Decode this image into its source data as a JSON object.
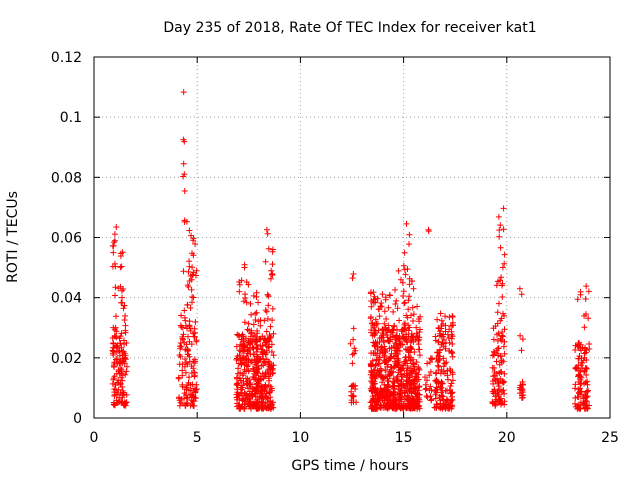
{
  "chart_data": {
    "type": "scatter",
    "title": "Day 235 of 2018, Rate Of TEC Index for receiver kat1",
    "xlabel": "GPS time / hours",
    "ylabel": "ROTI / TECUs",
    "xlim": [
      0,
      25
    ],
    "ylim": [
      0,
      0.12
    ],
    "x_ticks": [
      "0",
      "5",
      "10",
      "15",
      "20",
      "25"
    ],
    "y_ticks": [
      "0",
      "0.02",
      "0.04",
      "0.06",
      "0.08",
      "0.1",
      "0.12"
    ],
    "grid": true,
    "marker": "plus",
    "marker_color": "#ff0000",
    "series": [
      {
        "name": "ROTI",
        "clusters": [
          {
            "x": [
              0.9,
              1.6
            ],
            "y": [
              0.004,
              0.025
            ],
            "n": 110
          },
          {
            "x": [
              0.9,
              1.6
            ],
            "y": [
              0.025,
              0.045
            ],
            "n": 30
          },
          {
            "x": [
              0.9,
              1.1
            ],
            "y": [
              0.05,
              0.066
            ],
            "n": 10
          },
          {
            "x": [
              1.2,
              1.5
            ],
            "y": [
              0.045,
              0.056
            ],
            "n": 5
          },
          {
            "x": [
              4.1,
              5.0
            ],
            "y": [
              0.004,
              0.03
            ],
            "n": 110
          },
          {
            "x": [
              4.2,
              5.0
            ],
            "y": [
              0.03,
              0.05
            ],
            "n": 30
          },
          {
            "x": [
              4.6,
              4.9
            ],
            "y": [
              0.05,
              0.064
            ],
            "n": 10
          },
          {
            "x": [
              4.3,
              4.5
            ],
            "y": [
              0.065,
              0.114
            ],
            "n": 10
          },
          {
            "x": [
              6.9,
              8.7
            ],
            "y": [
              0.003,
              0.028
            ],
            "n": 420
          },
          {
            "x": [
              6.9,
              8.7
            ],
            "y": [
              0.028,
              0.045
            ],
            "n": 40
          },
          {
            "x": [
              7.0,
              7.4
            ],
            "y": [
              0.045,
              0.052
            ],
            "n": 5
          },
          {
            "x": [
              8.3,
              8.7
            ],
            "y": [
              0.045,
              0.068
            ],
            "n": 12
          },
          {
            "x": [
              12.4,
              12.7
            ],
            "y": [
              0.005,
              0.012
            ],
            "n": 15
          },
          {
            "x": [
              12.4,
              12.7
            ],
            "y": [
              0.018,
              0.035
            ],
            "n": 8
          },
          {
            "x": [
              12.5,
              12.6
            ],
            "y": [
              0.046,
              0.048
            ],
            "n": 2
          },
          {
            "x": [
              13.4,
              15.8
            ],
            "y": [
              0.003,
              0.03
            ],
            "n": 650
          },
          {
            "x": [
              13.4,
              15.8
            ],
            "y": [
              0.03,
              0.043
            ],
            "n": 70
          },
          {
            "x": [
              14.6,
              15.5
            ],
            "y": [
              0.043,
              0.05
            ],
            "n": 10
          },
          {
            "x": [
              15.0,
              15.3
            ],
            "y": [
              0.05,
              0.066
            ],
            "n": 5
          },
          {
            "x": [
              16.1,
              16.3
            ],
            "y": [
              0.062,
              0.065
            ],
            "n": 2
          },
          {
            "x": [
              16.0,
              16.4
            ],
            "y": [
              0.005,
              0.02
            ],
            "n": 20
          },
          {
            "x": [
              16.5,
              17.4
            ],
            "y": [
              0.003,
              0.03
            ],
            "n": 150
          },
          {
            "x": [
              16.6,
              17.4
            ],
            "y": [
              0.03,
              0.036
            ],
            "n": 15
          },
          {
            "x": [
              19.3,
              19.9
            ],
            "y": [
              0.004,
              0.03
            ],
            "n": 90
          },
          {
            "x": [
              19.4,
              19.9
            ],
            "y": [
              0.03,
              0.048
            ],
            "n": 15
          },
          {
            "x": [
              19.6,
              19.9
            ],
            "y": [
              0.05,
              0.07
            ],
            "n": 10
          },
          {
            "x": [
              20.6,
              20.8
            ],
            "y": [
              0.006,
              0.012
            ],
            "n": 15
          },
          {
            "x": [
              20.6,
              20.8
            ],
            "y": [
              0.02,
              0.044
            ],
            "n": 5
          },
          {
            "x": [
              23.3,
              24.0
            ],
            "y": [
              0.003,
              0.025
            ],
            "n": 110
          },
          {
            "x": [
              23.4,
              24.0
            ],
            "y": [
              0.03,
              0.048
            ],
            "n": 10
          }
        ]
      }
    ]
  }
}
